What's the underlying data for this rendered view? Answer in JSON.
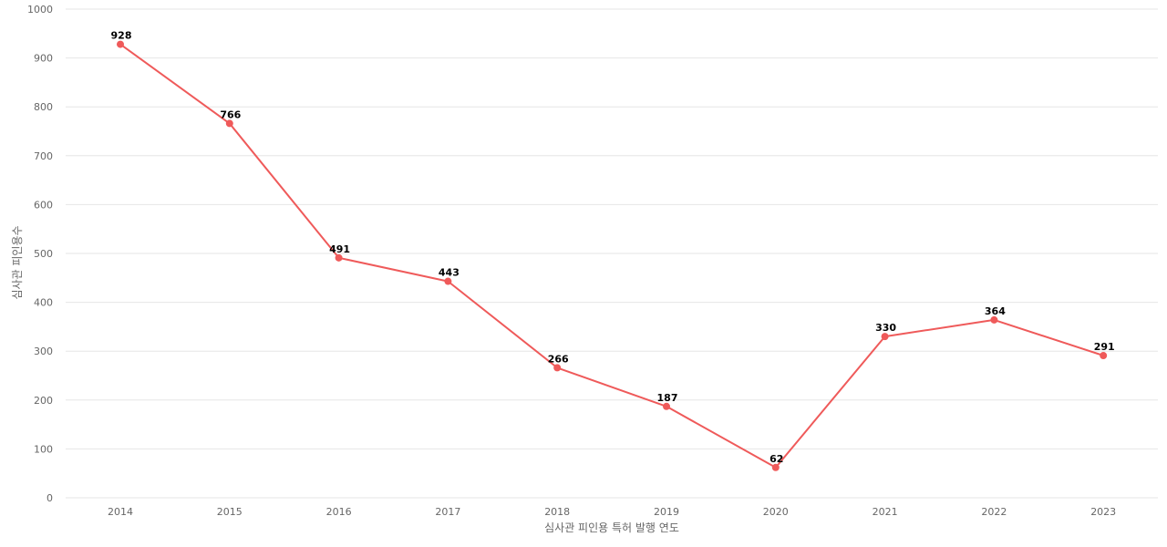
{
  "chart_data": {
    "type": "line",
    "title": "",
    "xlabel": "심사관 피인용 특허 발행 연도",
    "ylabel": "심사관 피인용수",
    "categories": [
      "2014",
      "2015",
      "2016",
      "2017",
      "2018",
      "2019",
      "2020",
      "2021",
      "2022",
      "2023"
    ],
    "series": [
      {
        "values": [
          928,
          766,
          491,
          443,
          266,
          187,
          62,
          330,
          364,
          291
        ],
        "color": "#ef5a5a"
      }
    ],
    "ylim": [
      0,
      1000
    ],
    "yticks": [
      "0",
      "100",
      "200",
      "300",
      "400",
      "500",
      "600",
      "700",
      "800",
      "900",
      "1000"
    ],
    "grid": true,
    "legend": "none",
    "colors": {
      "line": "#ef5a5a",
      "grid": "#e6e6e6",
      "axis_text": "#666666",
      "label_text": "#000000"
    }
  }
}
